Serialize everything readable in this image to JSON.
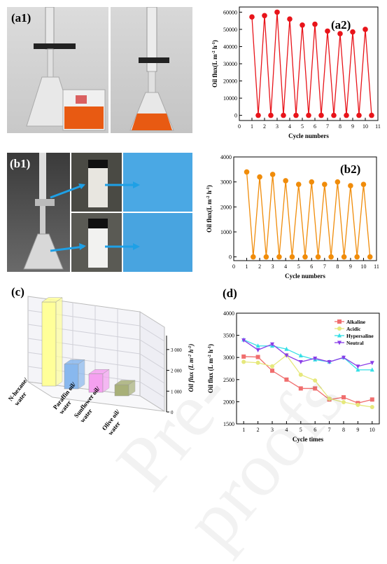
{
  "panels": {
    "a1": "(a1)",
    "a2": "(a2)",
    "b1": "(b1)",
    "b2": "(b2)",
    "c": "(c)",
    "d": "(d)"
  },
  "watermark": "Pre-proofs",
  "colors": {
    "a2_series": "#e8141a",
    "b2_series": "#f08c0a",
    "alkaline": "#f06e6e",
    "acidic": "#e6e87c",
    "hypersaline": "#35dfe6",
    "neutral": "#8a3ee8",
    "bar_yellow": "#ffff99",
    "bar_blue": "#88b8ee",
    "bar_pink": "#f5a0f0",
    "bar_olive": "#a8b078"
  },
  "chart_data": [
    {
      "id": "a2",
      "type": "line",
      "xlabel": "Cycle numbers",
      "ylabel": "Oil flux(L m-2 h-1)",
      "xlim": [
        0,
        11
      ],
      "ylim": [
        -3000,
        63000
      ],
      "xticks": [
        0,
        1,
        2,
        3,
        4,
        5,
        6,
        7,
        8,
        9,
        10,
        11
      ],
      "yticks": [
        0,
        10000,
        20000,
        30000,
        40000,
        50000,
        60000
      ],
      "x": [
        1,
        1.5,
        2,
        2.5,
        3,
        3.5,
        4,
        4.5,
        5,
        5.5,
        6,
        6.5,
        7,
        7.5,
        8,
        8.5,
        9,
        9.5,
        10,
        10.5
      ],
      "values": [
        57200,
        0,
        58000,
        0,
        60000,
        0,
        56000,
        0,
        52500,
        0,
        53000,
        0,
        49000,
        0,
        47500,
        0,
        48500,
        0,
        50000,
        0
      ]
    },
    {
      "id": "b2",
      "type": "line",
      "xlabel": "Cycle numbers",
      "ylabel": "Oil flux(L m-2 h-1)",
      "xlim": [
        0,
        11
      ],
      "ylim": [
        -150,
        4000
      ],
      "xticks": [
        0,
        1,
        2,
        3,
        4,
        5,
        6,
        7,
        8,
        9,
        10,
        11
      ],
      "yticks": [
        0,
        1000,
        2000,
        3000,
        4000
      ],
      "x": [
        1,
        1.5,
        2,
        2.5,
        3,
        3.5,
        4,
        4.5,
        5,
        5.5,
        6,
        6.5,
        7,
        7.5,
        8,
        8.5,
        9,
        9.5,
        10,
        10.5
      ],
      "values": [
        3400,
        0,
        3200,
        0,
        3300,
        0,
        3050,
        0,
        2900,
        0,
        3000,
        0,
        2900,
        0,
        3000,
        0,
        2850,
        0,
        2900,
        0
      ]
    },
    {
      "id": "c",
      "type": "bar",
      "ylabel": "Oil flux (L m-2 h-1)",
      "yticks": [
        0,
        1000,
        2000,
        3000
      ],
      "categories": [
        "N-hexane/water",
        "Paraffin oil/water",
        "Sunflower oil/water",
        "Olive oil/water"
      ],
      "values": [
        3400,
        1000,
        750,
        450
      ]
    },
    {
      "id": "d",
      "type": "line",
      "xlabel": "Cycle times",
      "ylabel": "Oil flux (L m-2 h-1)",
      "xlim": [
        0.5,
        10.5
      ],
      "ylim": [
        1500,
        4000
      ],
      "xticks": [
        1,
        2,
        3,
        4,
        5,
        6,
        7,
        8,
        9,
        10
      ],
      "yticks": [
        1500,
        2000,
        2500,
        3000,
        3500,
        4000
      ],
      "legend": "top-right",
      "x": [
        1,
        2,
        3,
        4,
        5,
        6,
        7,
        8,
        9,
        10
      ],
      "series": [
        {
          "name": "Alkaline",
          "values": [
            3020,
            3010,
            2700,
            2500,
            2300,
            2300,
            2050,
            2100,
            1970,
            2050
          ]
        },
        {
          "name": "Acidic",
          "values": [
            2900,
            2880,
            2800,
            3050,
            2610,
            2480,
            2070,
            1990,
            1930,
            1880
          ]
        },
        {
          "name": "Hypersaline",
          "values": [
            3400,
            3260,
            3260,
            3190,
            3040,
            2950,
            2900,
            3000,
            2720,
            2720
          ]
        },
        {
          "name": "Neutral",
          "values": [
            3390,
            3170,
            3300,
            3050,
            2900,
            2980,
            2900,
            3000,
            2800,
            2880
          ]
        }
      ]
    }
  ]
}
